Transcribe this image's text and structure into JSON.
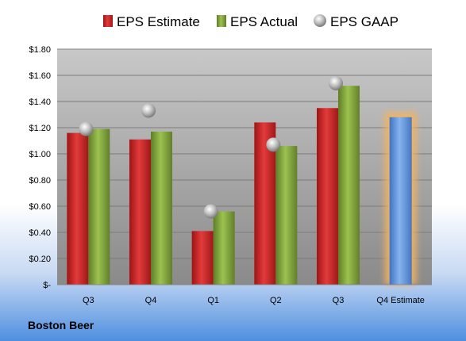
{
  "company_label": "Boston Beer",
  "chart_data": {
    "type": "bar",
    "categories": [
      "Q3",
      "Q4",
      "Q1",
      "Q2",
      "Q3",
      "Q4 Estimate"
    ],
    "series": [
      {
        "name": "EPS Estimate",
        "color": "#d42a2a",
        "values": [
          1.16,
          1.11,
          0.41,
          1.24,
          1.35,
          null
        ]
      },
      {
        "name": "EPS Actual",
        "color": "#86ac3c",
        "values": [
          1.19,
          1.17,
          0.56,
          1.06,
          1.52,
          null
        ]
      },
      {
        "name": "EPS GAAP",
        "color": "#b8b8b8",
        "marker": "circle",
        "values": [
          1.19,
          1.33,
          0.56,
          1.07,
          1.54,
          null
        ]
      }
    ],
    "estimate_bar": {
      "category": "Q4 Estimate",
      "value": 1.28,
      "color": "#6a9ee2",
      "glow": "#f7b35a"
    },
    "y_ticks": [
      "$-",
      "$0.20",
      "$0.40",
      "$0.60",
      "$0.80",
      "$1.00",
      "$1.20",
      "$1.40",
      "$1.60",
      "$1.80"
    ],
    "ylim": [
      0,
      1.8
    ],
    "grid": true,
    "legend_position": "top"
  }
}
